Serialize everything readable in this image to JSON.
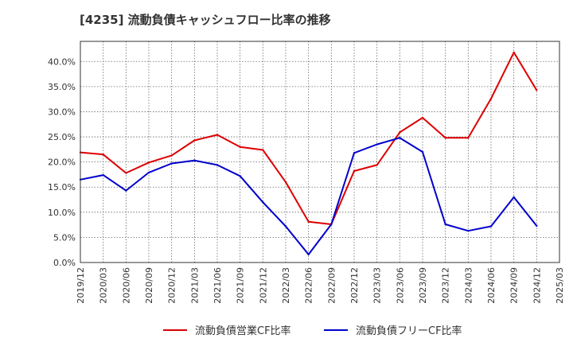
{
  "title": "[4235]  流動負債キャッシュフロー比率の推移",
  "colors": {
    "series1": "#dd0000",
    "series2": "#0000cc",
    "grid": "#666666",
    "frame": "#333333"
  },
  "chart_data": {
    "type": "line",
    "title": "[4235]  流動負債キャッシュフロー比率の推移",
    "xlabel": "",
    "ylabel": "",
    "grid": true,
    "legend_position": "bottom",
    "x": [
      "2019/12",
      "2020/03",
      "2020/06",
      "2020/09",
      "2020/12",
      "2021/03",
      "2021/06",
      "2021/09",
      "2021/12",
      "2022/03",
      "2022/06",
      "2022/09",
      "2022/12",
      "2023/03",
      "2023/06",
      "2023/09",
      "2023/12",
      "2024/03",
      "2024/06",
      "2024/09",
      "2024/12",
      "2025/03"
    ],
    "x_tick_labels": [
      "2019/12",
      "2020/03",
      "2020/06",
      "2020/09",
      "2020/12",
      "2021/03",
      "2021/06",
      "2021/09",
      "2021/12",
      "2022/03",
      "2022/06",
      "2022/09",
      "2022/12",
      "2023/03",
      "2023/06",
      "2023/09",
      "2023/12",
      "2024/03",
      "2024/06",
      "2024/09",
      "2024/12",
      "2025/03"
    ],
    "ylim": [
      0,
      44
    ],
    "y_ticks": [
      0,
      5,
      10,
      15,
      20,
      25,
      30,
      35,
      40
    ],
    "y_tick_labels": [
      "0.0%",
      "5.0%",
      "10.0%",
      "15.0%",
      "20.0%",
      "25.0%",
      "30.0%",
      "35.0%",
      "40.0%"
    ],
    "series": [
      {
        "name": "流動負債営業CF比率",
        "color": "#dd0000",
        "values": [
          21.9,
          21.5,
          17.8,
          19.9,
          21.3,
          24.3,
          25.4,
          23.0,
          22.4,
          16.0,
          8.1,
          7.6,
          18.2,
          19.4,
          25.9,
          28.8,
          24.8,
          24.8,
          32.6,
          41.8,
          34.3,
          null
        ]
      },
      {
        "name": "流動負債フリーCF比率",
        "color": "#0000cc",
        "values": [
          16.5,
          17.4,
          14.3,
          17.9,
          19.7,
          20.3,
          19.4,
          17.2,
          12.0,
          7.2,
          1.6,
          7.6,
          21.8,
          23.5,
          24.8,
          22.0,
          7.6,
          6.3,
          7.2,
          13.0,
          7.3,
          null
        ]
      }
    ]
  }
}
